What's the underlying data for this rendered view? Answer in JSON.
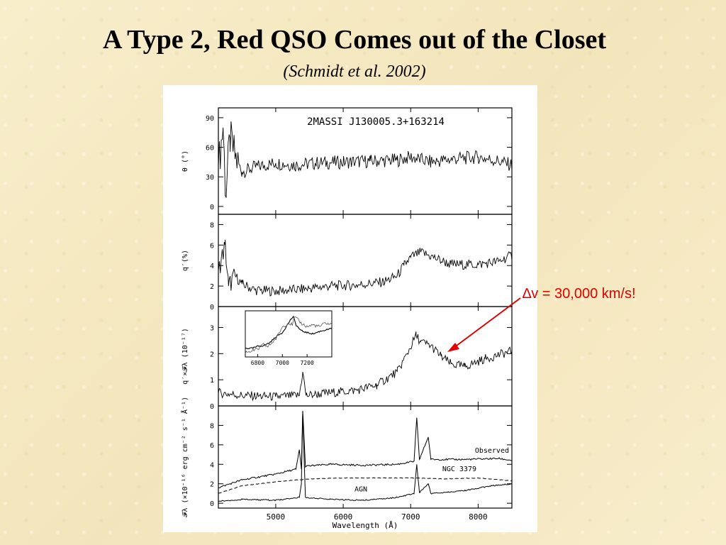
{
  "slide": {
    "title": "A Type 2, Red QSO Comes out of the Closet",
    "subtitle": "(Schmidt et al. 2002)",
    "callout": "∆v = 30,000 km/s!",
    "colors": {
      "background": "#f7ecc6",
      "callout": "#e00000",
      "arrow": "#e00000"
    }
  },
  "chart_data": {
    "type": "line",
    "object_label": "2MASSI J130005.3+163214",
    "x": {
      "label": "Wavelength (Å)",
      "range": [
        4150,
        8500
      ],
      "ticks": [
        5000,
        6000,
        7000,
        8000
      ],
      "tick_labels": [
        "5000",
        "6000",
        "7000",
        "8000"
      ]
    },
    "panels": [
      {
        "ylabel": "θ (°)",
        "ylim": [
          -8,
          100
        ],
        "yticks": [
          0,
          30,
          60,
          90
        ],
        "ytick_labels": [
          "0",
          "30",
          "60",
          "90"
        ],
        "series": [
          {
            "points": [
              [
                4150,
                40
              ],
              [
                4220,
                80
              ],
              [
                4260,
                10
              ],
              [
                4320,
                70
              ],
              [
                4400,
                50
              ],
              [
                4500,
                35
              ],
              [
                4700,
                40
              ],
              [
                5000,
                44
              ],
              [
                5300,
                42
              ],
              [
                5600,
                44
              ],
              [
                6000,
                45
              ],
              [
                6400,
                46
              ],
              [
                6800,
                47
              ],
              [
                7000,
                50
              ],
              [
                7300,
                45
              ],
              [
                7600,
                48
              ],
              [
                8000,
                50
              ],
              [
                8300,
                46
              ],
              [
                8500,
                42
              ]
            ]
          }
        ]
      },
      {
        "ylabel": "q′(%)",
        "ylim": [
          0,
          9
        ],
        "yticks": [
          0,
          2,
          4,
          6,
          8
        ],
        "ytick_labels": [
          "0",
          "2",
          "4",
          "6",
          "8"
        ],
        "series": [
          {
            "points": [
              [
                4150,
                3.5
              ],
              [
                4250,
                6
              ],
              [
                4300,
                2
              ],
              [
                4400,
                3
              ],
              [
                4500,
                2.2
              ],
              [
                4700,
                1.6
              ],
              [
                5000,
                1.5
              ],
              [
                5400,
                1.7
              ],
              [
                5800,
                2
              ],
              [
                6200,
                2.1
              ],
              [
                6600,
                2.4
              ],
              [
                6800,
                3
              ],
              [
                6900,
                4
              ],
              [
                7000,
                4.8
              ],
              [
                7150,
                5.3
              ],
              [
                7300,
                4.9
              ],
              [
                7600,
                4.1
              ],
              [
                8000,
                4.1
              ],
              [
                8300,
                4.4
              ],
              [
                8500,
                5
              ]
            ]
          }
        ]
      },
      {
        "ylabel": "q′×𝓕λ (10⁻¹⁷)",
        "ylim": [
          0,
          3.8
        ],
        "yticks": [
          0,
          1,
          2,
          3
        ],
        "ytick_labels": [
          "0",
          "1",
          "2",
          "3"
        ],
        "series": [
          {
            "points": [
              [
                4150,
                0.5
              ],
              [
                4500,
                0.4
              ],
              [
                5000,
                0.35
              ],
              [
                5350,
                0.4
              ],
              [
                5400,
                1.3
              ],
              [
                5450,
                0.4
              ],
              [
                5800,
                0.5
              ],
              [
                6200,
                0.6
              ],
              [
                6500,
                0.8
              ],
              [
                6800,
                1.3
              ],
              [
                6950,
                2.0
              ],
              [
                7080,
                2.7
              ],
              [
                7150,
                2.45
              ],
              [
                7300,
                2.3
              ],
              [
                7450,
                1.9
              ],
              [
                7600,
                1.6
              ],
              [
                7800,
                1.5
              ],
              [
                8100,
                1.8
              ],
              [
                8500,
                2.1
              ]
            ]
          }
        ],
        "inset": {
          "x_range": [
            6700,
            7400
          ],
          "ticks": [
            6800,
            7000,
            7200
          ],
          "tick_labels": [
            "6800",
            "7000",
            "7200"
          ],
          "ylim": [
            0,
            1
          ],
          "series": [
            {
              "points": [
                [
                  6700,
                  0.15
                ],
                [
                  6760,
                  0.15
                ],
                [
                  6800,
                  0.2
                ],
                [
                  6850,
                  0.22
                ],
                [
                  6900,
                  0.3
                ],
                [
                  6950,
                  0.45
                ],
                [
                  7000,
                  0.55
                ],
                [
                  7030,
                  0.7
                ],
                [
                  7070,
                  0.9
                ],
                [
                  7090,
                  0.95
                ],
                [
                  7110,
                  0.75
                ],
                [
                  7150,
                  0.6
                ],
                [
                  7200,
                  0.55
                ],
                [
                  7250,
                  0.52
                ],
                [
                  7300,
                  0.58
                ],
                [
                  7350,
                  0.62
                ],
                [
                  7400,
                  0.65
                ]
              ]
            },
            {
              "points": [
                [
                  6700,
                  0.05
                ],
                [
                  6800,
                  0.12
                ],
                [
                  6850,
                  0.25
                ],
                [
                  6880,
                  0.18
                ],
                [
                  6950,
                  0.4
                ],
                [
                  7000,
                  0.7
                ],
                [
                  7050,
                  0.8
                ],
                [
                  7080,
                  0.75
                ],
                [
                  7100,
                  0.95
                ],
                [
                  7150,
                  0.8
                ],
                [
                  7200,
                  0.7
                ],
                [
                  7250,
                  0.75
                ],
                [
                  7300,
                  0.7
                ],
                [
                  7350,
                  0.8
                ],
                [
                  7400,
                  0.75
                ]
              ]
            }
          ]
        }
      },
      {
        "ylabel": "𝓕λ (×10⁻¹⁶ erg cm⁻² s⁻¹ Å⁻¹)",
        "ylim": [
          -0.5,
          10
        ],
        "yticks": [
          0,
          2,
          4,
          6,
          8
        ],
        "ytick_labels": [
          "0",
          "2",
          "4",
          "6",
          "8"
        ],
        "series": [
          {
            "name": "Observed",
            "points": [
              [
                4150,
                1.6
              ],
              [
                4500,
                2.4
              ],
              [
                5000,
                3.0
              ],
              [
                5300,
                3.5
              ],
              [
                5350,
                5.5
              ],
              [
                5380,
                3.5
              ],
              [
                5400,
                9.5
              ],
              [
                5440,
                3.8
              ],
              [
                5800,
                4.0
              ],
              [
                6300,
                3.9
              ],
              [
                6800,
                4.0
              ],
              [
                7050,
                4.3
              ],
              [
                7090,
                8.8
              ],
              [
                7130,
                4.5
              ],
              [
                7260,
                6.8
              ],
              [
                7300,
                4.5
              ],
              [
                7800,
                4.5
              ],
              [
                8300,
                4.6
              ],
              [
                8500,
                4.4
              ]
            ]
          },
          {
            "name": "NGC 3379",
            "points": [
              [
                4150,
                1.0
              ],
              [
                4500,
                1.8
              ],
              [
                5000,
                2.2
              ],
              [
                5500,
                2.5
              ],
              [
                6000,
                2.6
              ],
              [
                6500,
                2.6
              ],
              [
                7000,
                2.6
              ],
              [
                7500,
                2.5
              ],
              [
                8000,
                2.6
              ],
              [
                8500,
                2.3
              ]
            ]
          },
          {
            "name": "AGN",
            "points": [
              [
                4150,
                0.2
              ],
              [
                4500,
                0.4
              ],
              [
                5000,
                0.3
              ],
              [
                5350,
                0.6
              ],
              [
                5380,
                2.0
              ],
              [
                5400,
                9.2
              ],
              [
                5440,
                0.6
              ],
              [
                5800,
                0.4
              ],
              [
                6300,
                0.3
              ],
              [
                6800,
                0.6
              ],
              [
                7050,
                1.0
              ],
              [
                7090,
                4.0
              ],
              [
                7130,
                1.1
              ],
              [
                7260,
                2.0
              ],
              [
                7300,
                1.0
              ],
              [
                7800,
                1.3
              ],
              [
                8200,
                1.8
              ],
              [
                8500,
                2.0
              ]
            ]
          }
        ]
      }
    ]
  }
}
